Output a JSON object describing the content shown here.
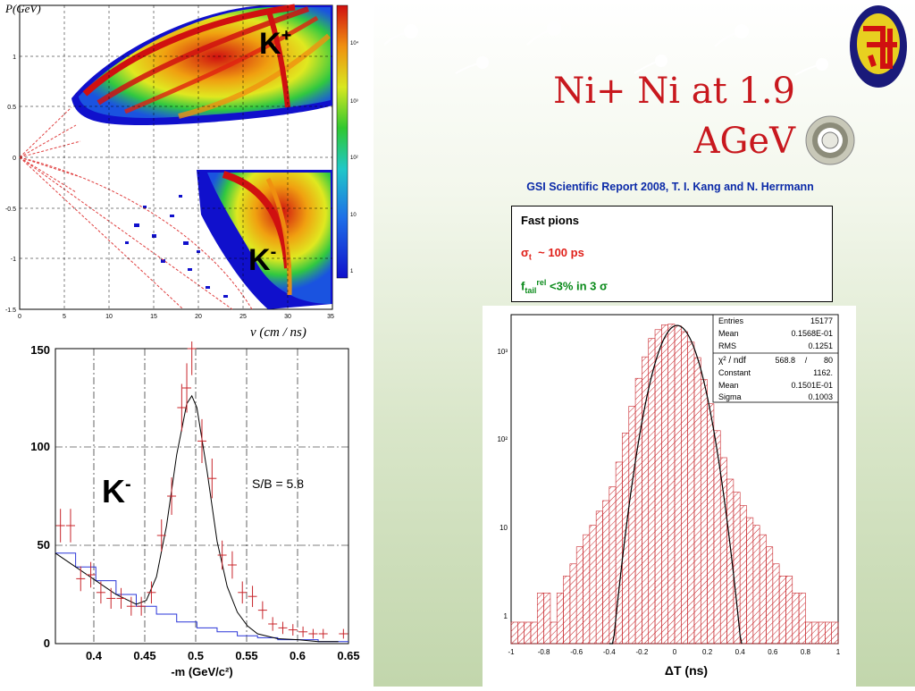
{
  "header": {
    "title_line1": "Ni+ Ni at 1.9",
    "title_line2": "AGeV",
    "subtitle": "GSI Scientific Report 2008, T. I. Kang and N. Herrmann"
  },
  "infobox": {
    "heading": "Fast pions",
    "sigma_symbol": "σ",
    "sigma_sub": "t",
    "sigma_text": "~ 100 ps",
    "ftail_f": "f",
    "ftail_sub": "tail",
    "ftail_sup": "rel",
    "ftail_text": "<3% in 3",
    "ftail_symbol": "σ"
  },
  "colors": {
    "title_red": "#c8181e",
    "subtitle_blue": "#0b2aa8",
    "fast_pions_green": "#0a8a1a",
    "data_red": "#c8242a",
    "background_blue": "#1010cc"
  },
  "chart_data": [
    {
      "type": "heatmap",
      "ylabel": "P(GeV)",
      "xlabel": "v (cm / ns)",
      "xlim": [
        0,
        35
      ],
      "ylim": [
        -1.5,
        1.5
      ],
      "x_ticks": [
        "0",
        "5",
        "10",
        "15",
        "20",
        "25",
        "30",
        "35"
      ],
      "y_ticks": [
        "1",
        "0.5",
        "0",
        "-0.5",
        "-1",
        "-1.5"
      ],
      "colorbar_ticks": [
        "10⁴",
        "10³",
        "10²",
        "10",
        "1"
      ],
      "annotations": [
        {
          "base": "K",
          "sup": "+"
        },
        {
          "base": "K",
          "sup": "-"
        }
      ],
      "grid": true,
      "log_z": true
    },
    {
      "type": "scatter",
      "xlabel": "-m (GeV/c²)",
      "xlim": [
        0.36,
        0.65
      ],
      "ylim": [
        0,
        150
      ],
      "x_ticks": [
        "0.4",
        "0.45",
        "0.5",
        "0.55",
        "0.6",
        "0.65"
      ],
      "y_ticks": [
        "0",
        "50",
        "100",
        "150"
      ],
      "annotations": [
        "K",
        "S/B = 5.8"
      ],
      "annotation_sup": "-",
      "grid": true,
      "series": [
        {
          "x": [
            0.365,
            0.375,
            0.385,
            0.395,
            0.405,
            0.415,
            0.425,
            0.435,
            0.445,
            0.455,
            0.465,
            0.475,
            0.485,
            0.49,
            0.495,
            0.505,
            0.515,
            0.525,
            0.535,
            0.545,
            0.555,
            0.565,
            0.575,
            0.585,
            0.595,
            0.605,
            0.615,
            0.625,
            0.645
          ],
          "y": [
            60,
            60,
            33,
            35,
            26,
            23,
            23,
            19,
            19,
            26,
            55,
            75,
            120,
            130,
            150,
            103,
            84,
            45,
            40,
            26,
            24,
            17,
            10,
            8,
            7,
            6,
            5,
            5,
            5
          ]
        },
        {
          "x": [
            0.36,
            0.38,
            0.4,
            0.42,
            0.44,
            0.46,
            0.48,
            0.5,
            0.52,
            0.54,
            0.56,
            0.58,
            0.6,
            0.62,
            0.64
          ],
          "y": [
            46,
            39,
            32,
            25,
            19,
            15,
            11,
            8,
            6,
            4,
            3,
            2,
            2,
            1,
            1
          ]
        },
        {
          "x": [
            0.36,
            0.38,
            0.4,
            0.42,
            0.44,
            0.45,
            0.46,
            0.47,
            0.48,
            0.49,
            0.495,
            0.5,
            0.51,
            0.52,
            0.53,
            0.54,
            0.55,
            0.56,
            0.58,
            0.6,
            0.62,
            0.64
          ],
          "y": [
            46,
            39,
            32,
            25,
            20,
            22,
            34,
            60,
            96,
            122,
            126,
            120,
            88,
            52,
            29,
            16,
            9,
            5,
            2.5,
            2,
            1,
            1
          ]
        }
      ]
    },
    {
      "type": "histogram",
      "xlabel": "ΔT (ns)",
      "xlim": [
        -1,
        1
      ],
      "ylim": [
        0.6,
        1500
      ],
      "log_y": true,
      "x_ticks": [
        "-1",
        "-0.8",
        "-0.6",
        "-0.4",
        "-0.2",
        "0",
        "0.2",
        "0.4",
        "0.6",
        "0.8",
        "1"
      ],
      "y_ticks": [
        "10³",
        "10²",
        "10",
        "1"
      ],
      "stats": {
        "entries_label": "Entries",
        "entries": "15177",
        "mean_label": "Mean",
        "mean": "0.1568E-01",
        "rms_label": "RMS",
        "rms": "0.1251",
        "chi2_label": "χ² / ndf",
        "chi2_value": "568.8",
        "chi2_sep": "/",
        "ndf": "80",
        "constant_label": "Constant",
        "constant": "1162.",
        "fit_mean_label": "Mean",
        "fit_mean": "0.1501E-01",
        "sigma_label": "Sigma",
        "sigma": "0.1003"
      },
      "fit": {
        "constant": 1162,
        "mean": 0.01501,
        "sigma": 0.1003
      },
      "series": [
        {
          "x": [
            -0.98,
            -0.94,
            -0.9,
            -0.86,
            -0.82,
            -0.78,
            -0.74,
            -0.7,
            -0.66,
            -0.62,
            -0.58,
            -0.54,
            -0.5,
            -0.46,
            -0.42,
            -0.38,
            -0.34,
            -0.3,
            -0.26,
            -0.22,
            -0.18,
            -0.14,
            -0.1,
            -0.06,
            -0.02,
            0.02,
            0.06,
            0.1,
            0.14,
            0.18,
            0.22,
            0.26,
            0.3,
            0.34,
            0.38,
            0.42,
            0.46,
            0.5,
            0.54,
            0.58,
            0.62,
            0.66,
            0.7,
            0.74,
            0.78,
            0.82,
            0.86,
            0.9,
            0.94,
            0.98
          ],
          "y": [
            1,
            1,
            1,
            1,
            2,
            2,
            1,
            2,
            3,
            4,
            6,
            8,
            10,
            14,
            18,
            25,
            45,
            90,
            170,
            330,
            550,
            850,
            1050,
            1180,
            1200,
            1150,
            1000,
            780,
            540,
            320,
            180,
            95,
            50,
            30,
            22,
            16,
            12,
            10,
            8,
            6,
            4,
            3,
            3,
            2,
            2,
            1,
            1,
            1,
            1,
            1
          ]
        }
      ]
    }
  ]
}
